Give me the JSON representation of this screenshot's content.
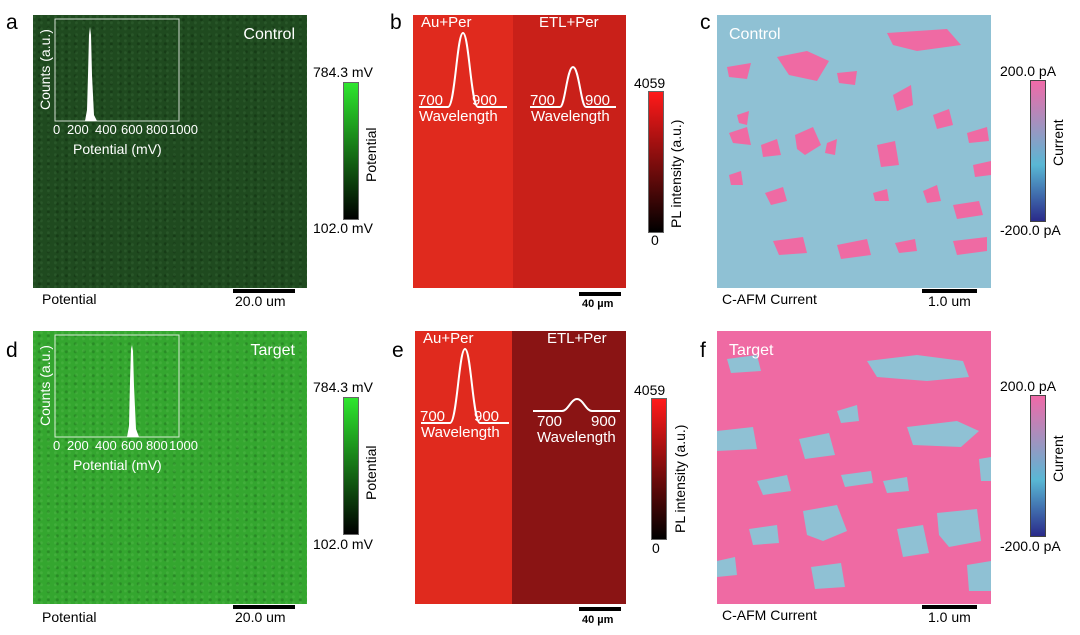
{
  "panels": {
    "a": {
      "letter": "a",
      "title": "Control",
      "bottom_label": "Potential",
      "scalebar": "20.0 um",
      "colorbar_max": "784.3 mV",
      "colorbar_min": "102.0 mV",
      "colorbar_label": "Potential",
      "inset_ylabel": "Counts (a.u.)",
      "inset_xlabel": "Potential (mV)",
      "inset_ticks": [
        "0",
        "200",
        "400",
        "600",
        "800",
        "1000"
      ],
      "map_color": "#1f4a1f"
    },
    "b": {
      "letter": "b",
      "left_label": "Au+Per",
      "right_label": "ETL+Per",
      "left_ticks": [
        "700",
        "900"
      ],
      "right_ticks": [
        "700",
        "900"
      ],
      "xlabel": "Wavelength",
      "scalebar": "40 µm",
      "colorbar_max": "4059",
      "colorbar_min": "0",
      "colorbar_label": "PL intensity (a.u.)"
    },
    "c": {
      "letter": "c",
      "title": "Control",
      "bottom_label": "C-AFM Current",
      "scalebar": "1.0 um",
      "colorbar_max": "200.0 pA",
      "colorbar_min": "-200.0 pA",
      "colorbar_label": "Current"
    },
    "d": {
      "letter": "d",
      "title": "Target",
      "bottom_label": "Potential",
      "scalebar": "20.0 um",
      "colorbar_max": "784.3 mV",
      "colorbar_min": "102.0 mV",
      "colorbar_label": "Potential",
      "inset_ylabel": "Counts (a.u.)",
      "inset_xlabel": "Potential (mV)",
      "inset_ticks": [
        "0",
        "200",
        "400",
        "600",
        "800",
        "1000"
      ],
      "map_color": "#34a62f"
    },
    "e": {
      "letter": "e",
      "left_label": "Au+Per",
      "right_label": "ETL+Per",
      "left_ticks": [
        "700",
        "900"
      ],
      "right_ticks": [
        "700",
        "900"
      ],
      "xlabel": "Wavelength",
      "scalebar": "40 µm",
      "colorbar_max": "4059",
      "colorbar_min": "0",
      "colorbar_label": "PL intensity (a.u.)"
    },
    "f": {
      "letter": "f",
      "title": "Target",
      "bottom_label": "C-AFM Current",
      "scalebar": "1.0 um",
      "colorbar_max": "200.0 pA",
      "colorbar_min": "-200.0 pA",
      "colorbar_label": "Current"
    }
  },
  "colors": {
    "kpfm_bar_top": "#2ee62e",
    "kpfm_bar_bottom": "#000000",
    "pl_left": "#e8251c",
    "pl_right_control": "#c8201a",
    "pl_right_target": "#8a1414",
    "pl_bar_top": "#ff1a1a",
    "pl_bar_bottom": "#000000",
    "cafm_blue": "#8fc1d4",
    "cafm_pink": "#ef6aa3",
    "cafm_bar_top": "#f06aa8",
    "cafm_bar_mid": "#59b7d4",
    "cafm_bar_bottom": "#2a2a8a"
  }
}
